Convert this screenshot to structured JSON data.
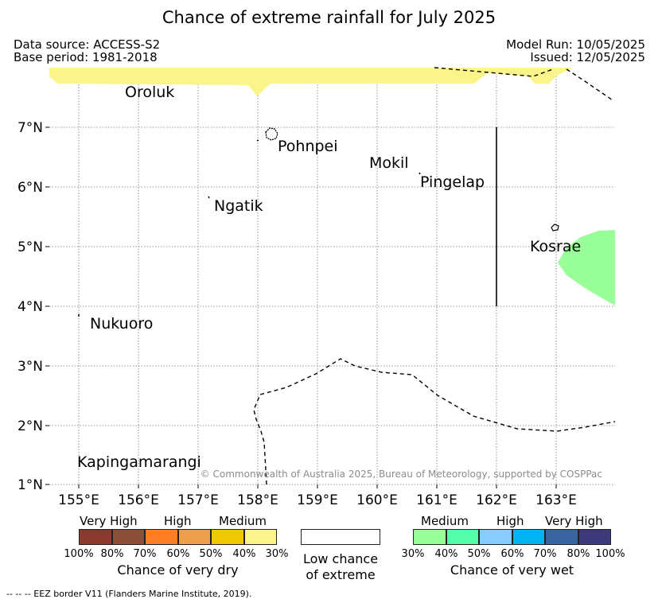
{
  "title": "Chance of extreme rainfall for July 2025",
  "header": {
    "data_source": "Data source: ACCESS-S2",
    "base_period": "Base period: 1981-2018",
    "model_run": "Model Run: 10/05/2025",
    "issued": "Issued: 12/05/2025"
  },
  "map": {
    "lat_ticks": [
      "7°N",
      "6°N",
      "5°N",
      "4°N",
      "3°N",
      "2°N",
      "1°N"
    ],
    "lon_ticks": [
      "155°E",
      "156°E",
      "157°E",
      "158°E",
      "159°E",
      "160°E",
      "161°E",
      "162°E",
      "163°E"
    ],
    "places": {
      "oroluk": "Oroluk",
      "pohnpei": "Pohnpei",
      "mokil": "Mokil",
      "pingelap": "Pingelap",
      "ngatik": "Ngatik",
      "kosrae": "Kosrae",
      "nukuoro": "Nukuoro",
      "kapingamarangi": "Kapingamarangi"
    },
    "copyright": "© Commonwealth of Australia 2025, Bureau of Meteorology, supported by COSPPac",
    "colors": {
      "dry_medium_fill": "#fbf48a",
      "wet_medium_fill": "#99ff99"
    }
  },
  "legend": {
    "dry": {
      "categories": [
        "Very High",
        "High",
        "Medium"
      ],
      "colors": [
        "#8b3a2f",
        "#8b4f3a",
        "#ff7f27",
        "#eda04c",
        "#eec800",
        "#fbf48a"
      ],
      "ticks": [
        "100%",
        "80%",
        "70%",
        "60%",
        "50%",
        "40%",
        "30%"
      ],
      "label": "Chance of very dry"
    },
    "low": {
      "line1": "Low chance",
      "line2": "of extreme"
    },
    "wet": {
      "categories": [
        "Medium",
        "High",
        "Very High"
      ],
      "colors": [
        "#99ff99",
        "#55ffaa",
        "#88ccff",
        "#00b4f0",
        "#3a64a0",
        "#3e3a7a"
      ],
      "ticks": [
        "30%",
        "40%",
        "50%",
        "60%",
        "70%",
        "80%",
        "100%"
      ],
      "label": "Chance of very wet"
    }
  },
  "footer": "-- -- -- EEZ border V11 (Flanders Marine Institute, 2019)."
}
